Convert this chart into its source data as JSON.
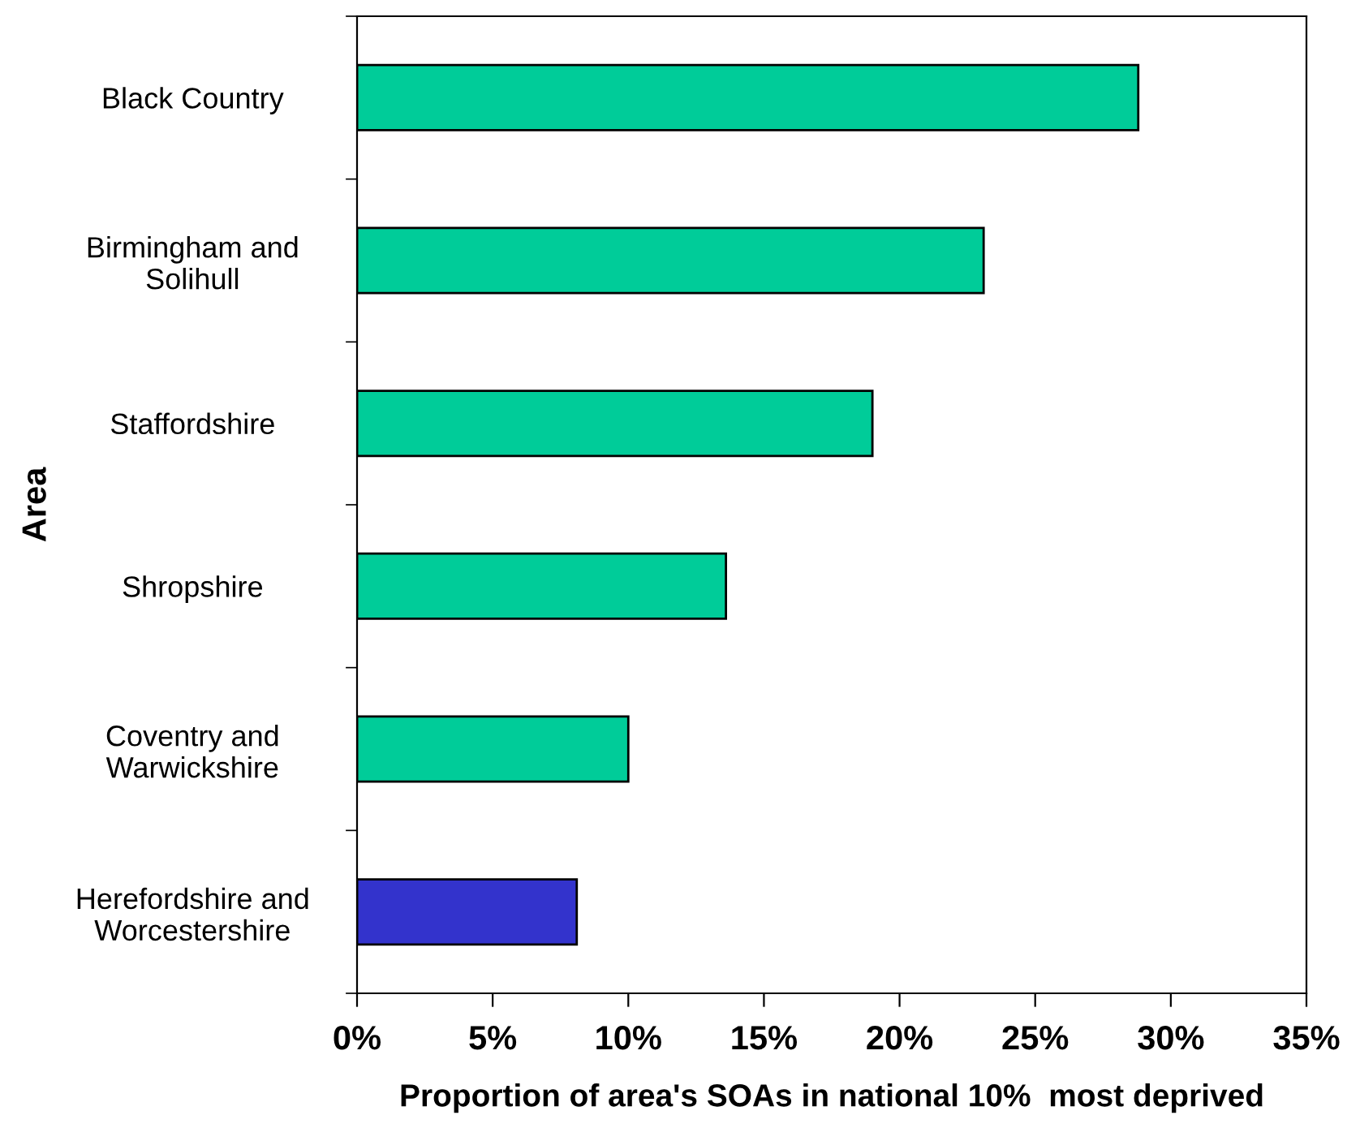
{
  "chart_data": {
    "type": "bar",
    "orientation": "horizontal",
    "categories": [
      "Black Country",
      "Birmingham and\nSolihull",
      "Staffordshire",
      "Shropshire",
      "Coventry and\nWarwickshire",
      "Herefordshire and\nWorcestershire"
    ],
    "values": [
      28.8,
      23.1,
      19.0,
      13.6,
      10.0,
      8.1
    ],
    "colors": [
      "#00cc99",
      "#00cc99",
      "#00cc99",
      "#00cc99",
      "#00cc99",
      "#3333cc"
    ],
    "xlim": [
      0,
      35
    ],
    "xticks": [
      {
        "value": 0,
        "label": "0%"
      },
      {
        "value": 5,
        "label": "5%"
      },
      {
        "value": 10,
        "label": "10%"
      },
      {
        "value": 15,
        "label": "15%"
      },
      {
        "value": 20,
        "label": "20%"
      },
      {
        "value": 25,
        "label": "25%"
      },
      {
        "value": 30,
        "label": "30%"
      },
      {
        "value": 35,
        "label": "35%"
      }
    ],
    "xlabel": "Proportion of area's SOAs in national 10%  most deprived",
    "ylabel": "Area",
    "grid": false,
    "legend": false
  }
}
